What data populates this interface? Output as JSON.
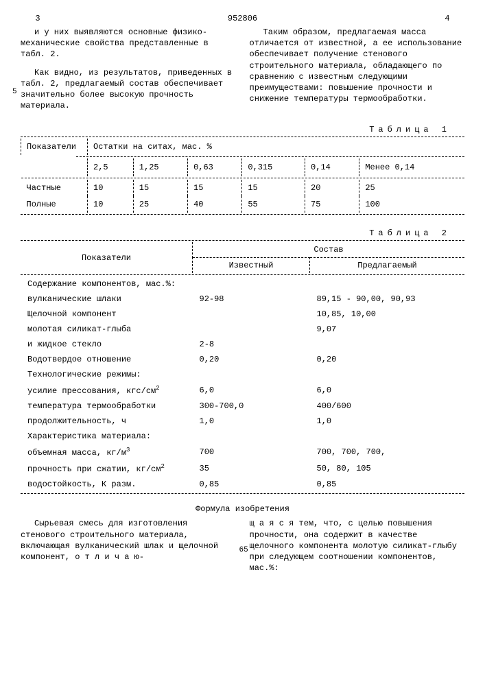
{
  "pageLeft": "3",
  "docNumber": "952806",
  "pageRight": "4",
  "leftCol": {
    "p1": "и у них выявляются основные физико-механические свойства представленные в табл. 2.",
    "p2": "Как видно, из результатов, приведенных в табл. 2, предлагаемый состав обеспечивает значительно более высокую прочность материала."
  },
  "rightCol": {
    "p1": "Таким образом, предлагаемая масса отличается от известной, а ее использование обеспечивает получение стенового строительного материала, обладающего по сравнению с известным следующими преимуществами: повышение прочности и снижение температуры термообработки."
  },
  "marginNum5": "5",
  "table1": {
    "label": "Таблица 1",
    "head1": "Показатели",
    "head2": "Остатки на ситах, мас. %",
    "cols": [
      "2,5",
      "1,25",
      "0,63",
      "0,315",
      "0,14",
      "Менее 0,14"
    ],
    "rows": [
      {
        "label": "Частные",
        "vals": [
          "10",
          "15",
          "15",
          "15",
          "20",
          "25"
        ]
      },
      {
        "label": "Полные",
        "vals": [
          "10",
          "25",
          "40",
          "55",
          "75",
          "100"
        ]
      }
    ]
  },
  "table2": {
    "label": "Таблица 2",
    "head1": "Показатели",
    "head2": "Состав",
    "sub1": "Известный",
    "sub2": "Предлагаемый",
    "rows": [
      {
        "label": "Содержание компонентов, мас.%:",
        "c1": "",
        "c2": ""
      },
      {
        "label": "вулканические шлаки",
        "indent": true,
        "c1": "92-98",
        "c2": "89,15 - 90,00, 90,93"
      },
      {
        "label": "Щелочной компонент",
        "indent": true,
        "c1": "",
        "c2": "10,85, 10,00"
      },
      {
        "label": "молотая силикат-глыба",
        "indent": true,
        "c1": "",
        "c2": "9,07"
      },
      {
        "label": "и жидкое стекло",
        "indent": true,
        "c1": "2-8",
        "c2": ""
      },
      {
        "label": "Водотвердое отношение",
        "c1": "0,20",
        "c2": "0,20"
      },
      {
        "label": "Технологические режимы:",
        "c1": "",
        "c2": ""
      },
      {
        "label": "усилие прессования, кгс/см",
        "sup": "2",
        "indent": true,
        "c1": "6,0",
        "c2": "6,0"
      },
      {
        "label": "температура термообработки",
        "indent": true,
        "c1": "300-700,0",
        "c2": "400/600"
      },
      {
        "label": "продолжительность, ч",
        "indent": true,
        "c1": "1,0",
        "c2": "1,0"
      },
      {
        "label": "Характеристика материала:",
        "c1": "",
        "c2": ""
      },
      {
        "label": "объемная масса, кг/м",
        "sup": "3",
        "indent": true,
        "c1": "700",
        "c2": "700, 700, 700,"
      },
      {
        "label": "прочность при сжатии, кг/см",
        "sup": "2",
        "indent": true,
        "c1": "35",
        "c2": "50, 80, 105"
      },
      {
        "label": "водостойкость, К разм.",
        "indent": true,
        "c1": "0,85",
        "c2": "0,85"
      }
    ]
  },
  "formula": {
    "title": "Формула изобретения",
    "left": "Сырьевая смесь для изготовления стенового строительного материала, включающая вулканический шлак и щелочной компонент, о т л и ч а ю-",
    "right": "щ а я с я  тем, что, с целью повышения прочности, она содержит в качестве щелочного компонента молотую силикат-глыбу при следующем соотношении компонентов, мас.%:",
    "num65": "65"
  }
}
